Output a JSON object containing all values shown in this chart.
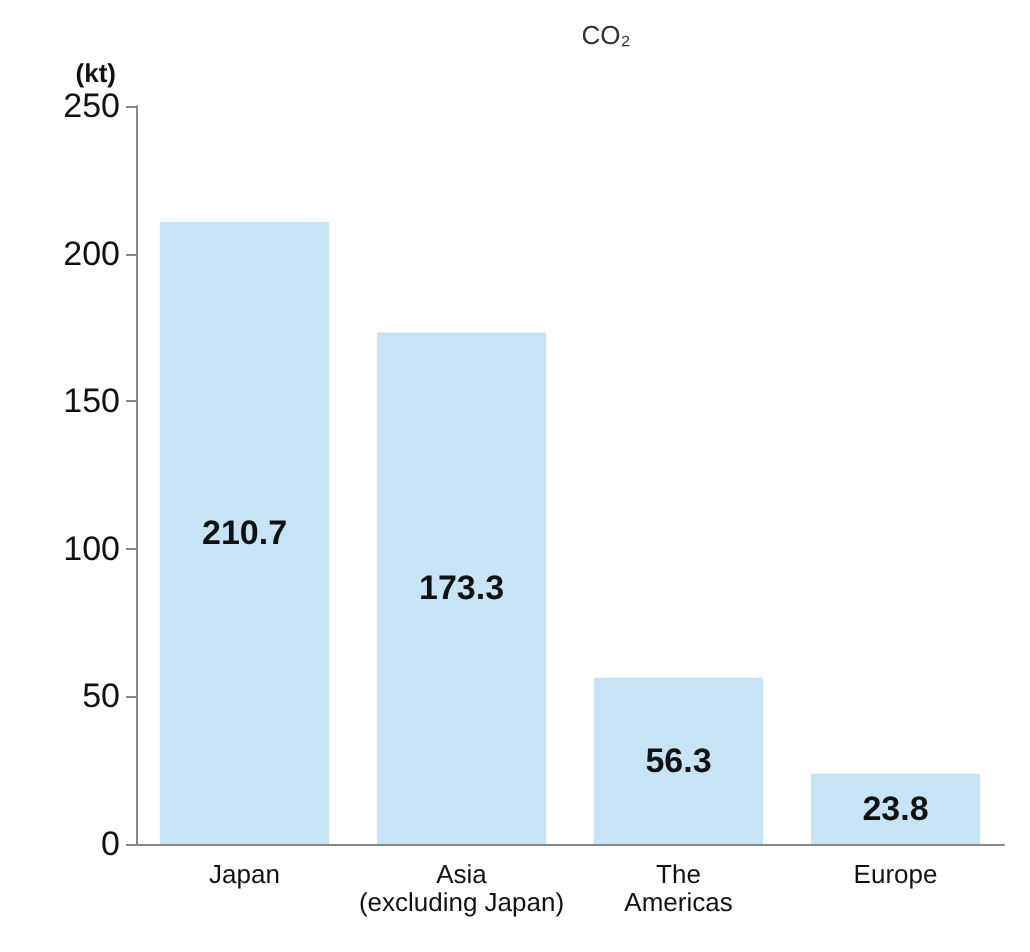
{
  "chart_data": {
    "type": "bar",
    "title": "CO₂",
    "ylabel": "(kt)",
    "categories": [
      "Japan",
      "Asia\n(excluding Japan)",
      "The\nAmericas",
      "Europe"
    ],
    "values": [
      210.7,
      173.3,
      56.3,
      23.8
    ],
    "color": "#c6e4f6",
    "ylim": [
      0,
      250
    ],
    "yticks": [
      0,
      50,
      100,
      150,
      200,
      250
    ],
    "grid": false,
    "data_labels": true
  }
}
